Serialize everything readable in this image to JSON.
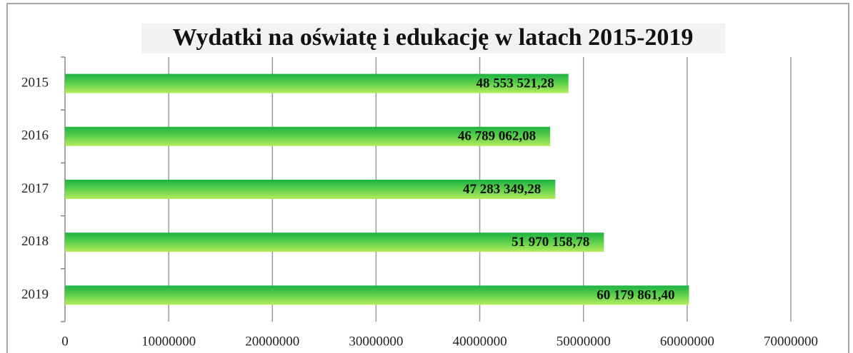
{
  "chart_data": {
    "type": "bar",
    "orientation": "horizontal",
    "title": "Wydatki na oświatę i edukację w latach 2015-2019",
    "categories": [
      "2015",
      "2016",
      "2017",
      "2018",
      "2019"
    ],
    "values": [
      48553521.28,
      46789062.08,
      47283349.28,
      51970158.78,
      60179861.4
    ],
    "value_labels": [
      "48 553 521,28",
      "46 789 062,08",
      "47 283 349,28",
      "51 970 158,78",
      "60 179 861,40"
    ],
    "color": "#1db345",
    "xlim": [
      0,
      70000000
    ],
    "xticks": [
      0,
      10000000,
      20000000,
      30000000,
      40000000,
      50000000,
      60000000,
      70000000
    ],
    "grid": true
  }
}
